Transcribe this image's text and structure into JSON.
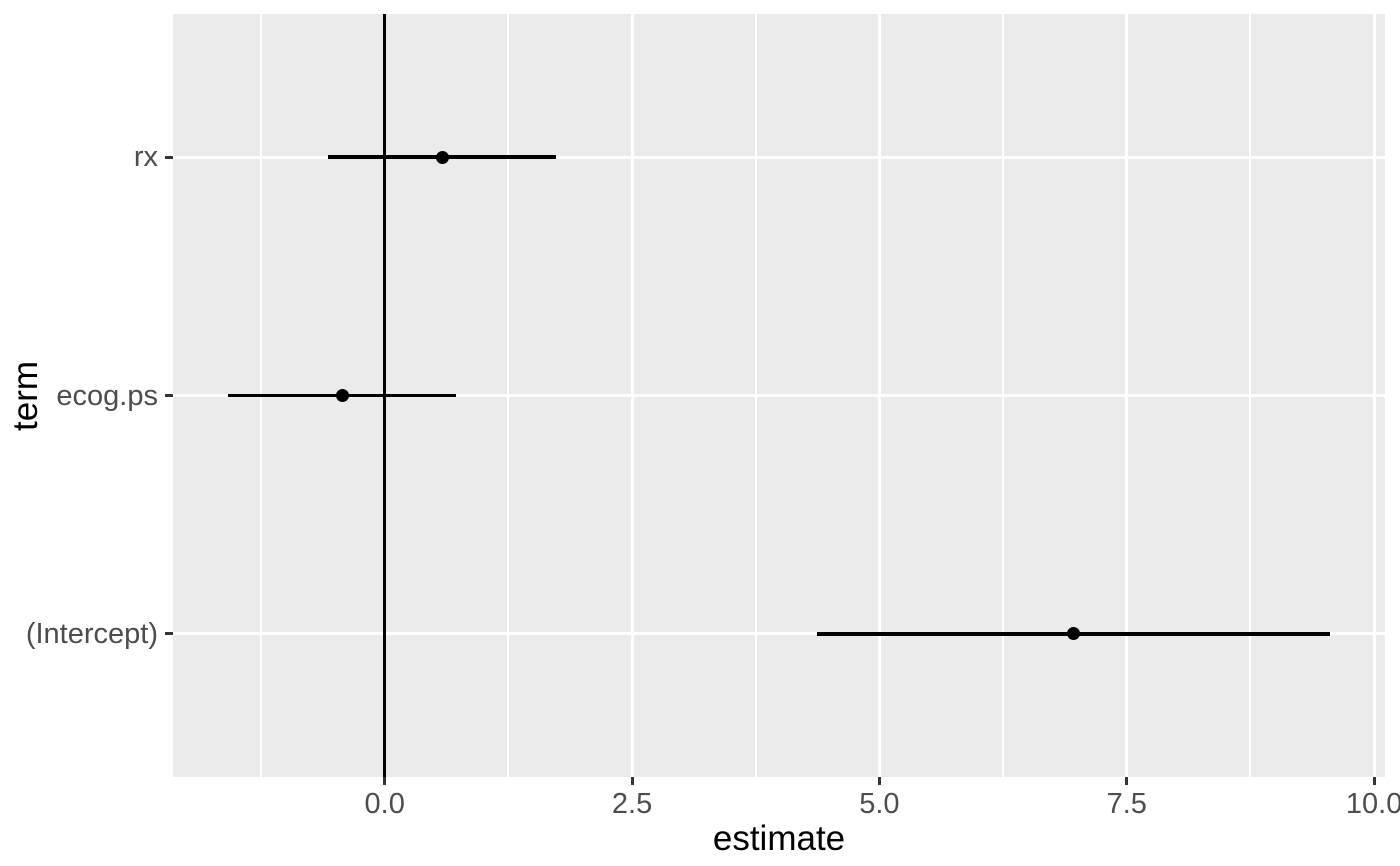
{
  "figure": {
    "theme": "ggplot2-grey",
    "background_color": "#FFFFFF",
    "panel_color": "#EBEBEB",
    "gridline_color": "#FFFFFF",
    "axis_text_color": "#4D4D4D",
    "axis_title_color": "#000000",
    "tick_mark_color": "#333333",
    "data_color": "#000000"
  },
  "chart_data": {
    "type": "scatter",
    "variant": "coefficient-forest-plot-with-error-bars",
    "title": "",
    "xlabel": "estimate",
    "ylabel": "term",
    "legend_position": "none",
    "grid": true,
    "x_axis": {
      "tick_labels": [
        "0.0",
        "2.5",
        "5.0",
        "7.5",
        "10.0"
      ],
      "tick_values": [
        0,
        2.5,
        5,
        7.5,
        10
      ],
      "minor_tick_values": [
        -1.25,
        1.25,
        3.75,
        6.25,
        8.75
      ],
      "limits": [
        -2.14,
        10.11
      ]
    },
    "y_axis": {
      "categories_top_to_bottom": [
        "rx",
        "ecog.ps",
        "(Intercept)"
      ]
    },
    "reference_line": {
      "orientation": "vertical",
      "x": 0
    },
    "series": [
      {
        "term": "rx",
        "estimate": 0.58,
        "conf_low": -0.57,
        "conf_high": 1.73
      },
      {
        "term": "ecog.ps",
        "estimate": -0.43,
        "conf_low": -1.58,
        "conf_high": 0.72
      },
      {
        "term": "(Intercept)",
        "estimate": 6.96,
        "conf_low": 4.37,
        "conf_high": 9.55
      }
    ]
  }
}
